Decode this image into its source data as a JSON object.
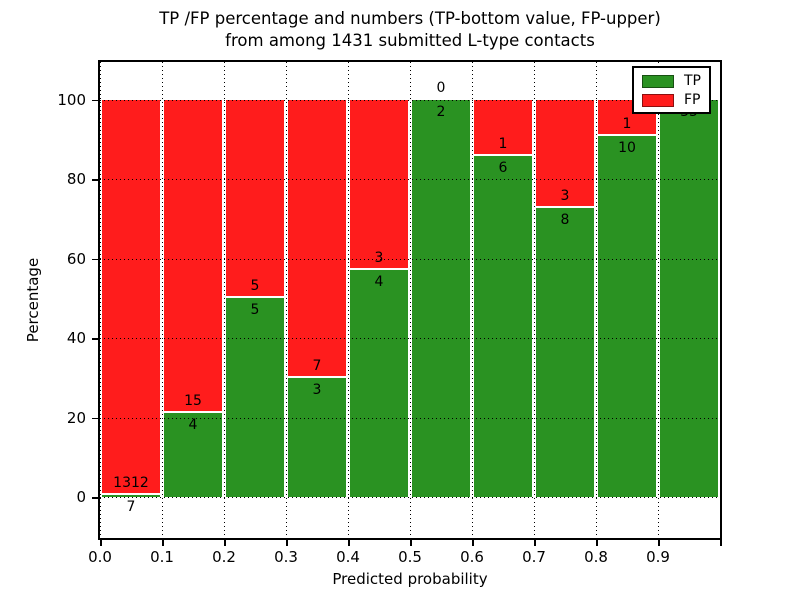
{
  "title": {
    "line1": "TP /FP percentage and numbers (TP-bottom value, FP-upper)",
    "line2": "from among 1431 submitted L-type contacts"
  },
  "axes": {
    "xlabel": "Predicted probability",
    "ylabel": "Percentage"
  },
  "legend": {
    "items": [
      {
        "label": "TP",
        "color": "#2a9222"
      },
      {
        "label": "FP",
        "color": "#ff1c1c"
      }
    ]
  },
  "chart_data": {
    "type": "bar",
    "stacked": true,
    "title": "TP /FP percentage and numbers (TP-bottom value, FP-upper) from among 1431 submitted L-type contacts",
    "xlabel": "Predicted probability",
    "ylabel": "Percentage",
    "xlim": [
      0.0,
      1.0
    ],
    "ylim": [
      -10,
      110
    ],
    "grid": true,
    "legend_position": "upper right",
    "bin_edges": [
      0.0,
      0.1,
      0.2,
      0.3,
      0.4,
      0.5,
      0.6,
      0.7,
      0.8,
      0.9,
      1.0
    ],
    "xtick_labels": [
      "0.0",
      "0.1",
      "0.2",
      "0.3",
      "0.4",
      "0.5",
      "0.6",
      "0.7",
      "0.8",
      "0.9"
    ],
    "ytick_values": [
      0,
      20,
      40,
      60,
      80,
      100
    ],
    "colors": {
      "tp": "#2a9222",
      "fp": "#ff1c1c"
    },
    "series": [
      {
        "name": "TP",
        "color": "#2a9222",
        "counts": [
          7,
          4,
          5,
          3,
          4,
          2,
          6,
          8,
          10,
          35
        ],
        "percentages": [
          0.53,
          21.05,
          50.0,
          30.0,
          57.14,
          100.0,
          85.71,
          72.73,
          90.91,
          100.0
        ]
      },
      {
        "name": "FP",
        "color": "#ff1c1c",
        "counts": [
          1312,
          15,
          5,
          7,
          3,
          0,
          1,
          3,
          1,
          0
        ],
        "percentages": [
          99.47,
          78.95,
          50.0,
          70.0,
          42.86,
          0.0,
          14.29,
          27.27,
          9.09,
          0.0
        ]
      }
    ],
    "annotations": {
      "tp_labels": [
        "7",
        "4",
        "5",
        "3",
        "4",
        "2",
        "6",
        "8",
        "10",
        "35"
      ],
      "fp_labels": [
        "1312",
        "15",
        "5",
        "7",
        "3",
        "0",
        "1",
        "3",
        "1",
        ""
      ]
    }
  }
}
